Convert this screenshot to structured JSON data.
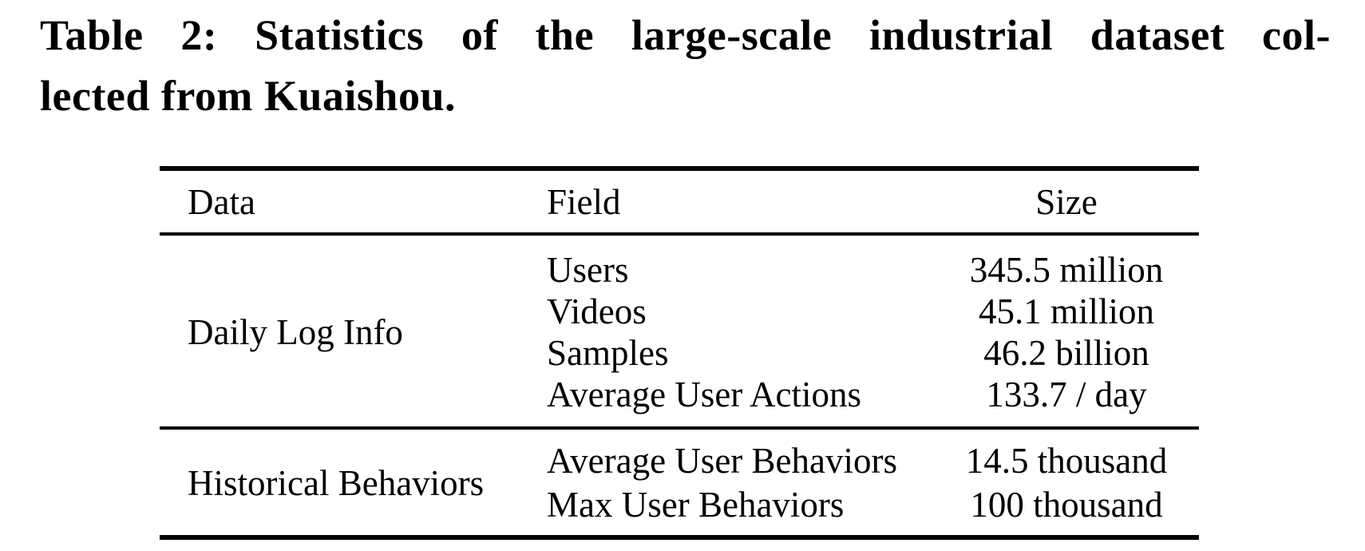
{
  "caption": {
    "line1": "Table 2: Statistics of the large-scale industrial dataset col-",
    "line2": "lected from Kuaishou.",
    "full_text": "Table 2: Statistics of the large-scale industrial dataset collected from Kuaishou."
  },
  "table": {
    "headers": [
      "Data",
      "Field",
      "Size"
    ],
    "groups": [
      {
        "data": "Daily Log Info",
        "rows": [
          {
            "field": "Users",
            "size": "345.5 million"
          },
          {
            "field": "Videos",
            "size": "45.1 million"
          },
          {
            "field": "Samples",
            "size": "46.2 billion"
          },
          {
            "field": "Average User Actions",
            "size": "133.7 / day"
          }
        ]
      },
      {
        "data": "Historical Behaviors",
        "rows": [
          {
            "field": "Average User Behaviors",
            "size": "14.5 thousand"
          },
          {
            "field": "Max User Behaviors",
            "size": "100 thousand"
          }
        ]
      }
    ]
  },
  "colors": {
    "text": "#000000",
    "background": "#ffffff",
    "rule": "#000000"
  }
}
